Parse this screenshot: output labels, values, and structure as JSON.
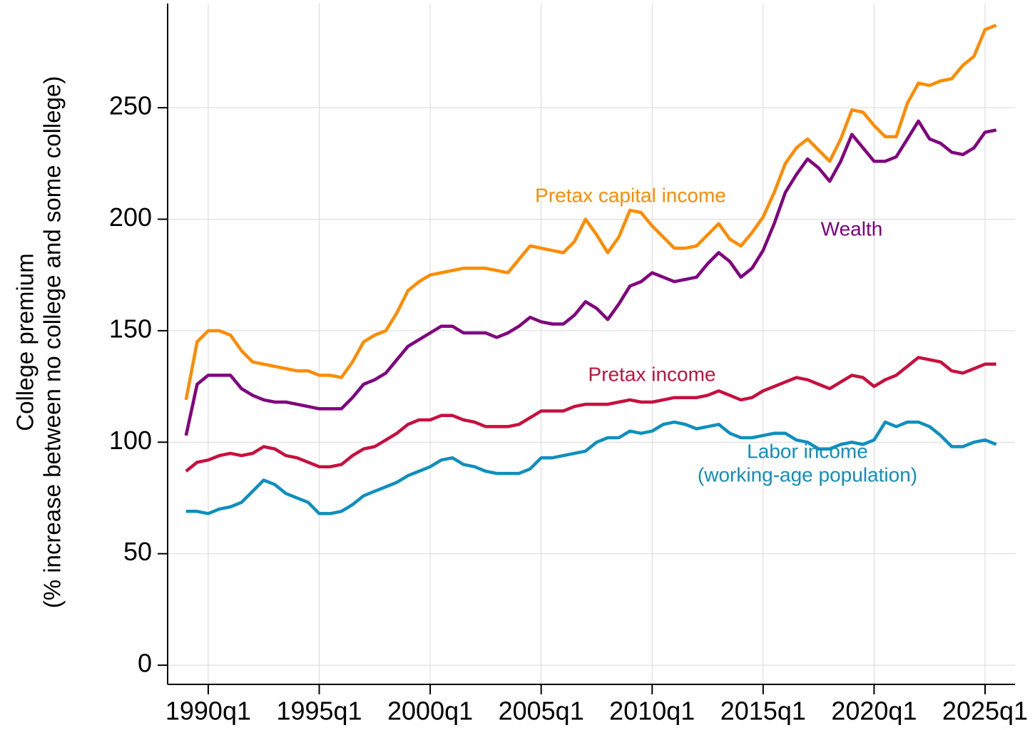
{
  "chart_data": {
    "type": "line",
    "ylabel": [
      "College premium",
      "(% increase between no college and some college)"
    ],
    "x": [
      1989.0,
      1989.5,
      1990.0,
      1990.5,
      1991.0,
      1991.5,
      1992.0,
      1992.5,
      1993.0,
      1993.5,
      1994.0,
      1994.5,
      1995.0,
      1995.5,
      1996.0,
      1996.5,
      1997.0,
      1997.5,
      1998.0,
      1998.5,
      1999.0,
      1999.5,
      2000.0,
      2000.5,
      2001.0,
      2001.5,
      2002.0,
      2002.5,
      2003.0,
      2003.5,
      2004.0,
      2004.5,
      2005.0,
      2005.5,
      2006.0,
      2006.5,
      2007.0,
      2007.5,
      2008.0,
      2008.5,
      2009.0,
      2009.5,
      2010.0,
      2010.5,
      2011.0,
      2011.5,
      2012.0,
      2012.5,
      2013.0,
      2013.5,
      2014.0,
      2014.5,
      2015.0,
      2015.5,
      2016.0,
      2016.5,
      2017.0,
      2017.5,
      2018.0,
      2018.5,
      2019.0,
      2019.5,
      2020.0,
      2020.5,
      2021.0,
      2021.5,
      2022.0,
      2022.5,
      2023.0,
      2023.5,
      2024.0,
      2024.5,
      2025.0,
      2025.5
    ],
    "series": [
      {
        "label_lines": [
          "Pretax capital income"
        ],
        "color": "#ff8c00",
        "values": [
          119,
          145,
          150,
          150,
          148,
          141,
          136,
          135,
          134,
          133,
          132,
          132,
          130,
          130,
          129,
          136,
          145,
          148,
          150,
          158,
          168,
          172,
          175,
          176,
          177,
          178,
          178,
          178,
          177,
          176,
          182,
          188,
          187,
          186,
          185,
          190,
          200,
          193,
          185,
          192,
          204,
          203,
          197,
          192,
          187,
          187,
          188,
          193,
          198,
          191,
          188,
          194,
          201,
          212,
          225,
          232,
          236,
          231,
          226,
          236,
          249,
          248,
          242,
          237,
          237,
          252,
          261,
          260,
          262,
          263,
          269,
          273,
          285,
          287
        ]
      },
      {
        "label_lines": [
          "Wealth"
        ],
        "color": "#800080",
        "values": [
          103,
          126,
          130,
          130,
          130,
          124,
          121,
          119,
          118,
          118,
          117,
          116,
          115,
          115,
          115,
          120,
          126,
          128,
          131,
          137,
          143,
          146,
          149,
          152,
          152,
          149,
          149,
          149,
          147,
          149,
          152,
          156,
          154,
          153,
          153,
          157,
          163,
          160,
          155,
          162,
          170,
          172,
          176,
          174,
          172,
          173,
          174,
          180,
          185,
          181,
          174,
          178,
          186,
          198,
          212,
          220,
          227,
          223,
          217,
          226,
          238,
          232,
          226,
          226,
          228,
          236,
          244,
          236,
          234,
          230,
          229,
          232,
          239,
          240
        ]
      },
      {
        "label_lines": [
          "Pretax income"
        ],
        "color": "#c8103e",
        "values": [
          87,
          91,
          92,
          94,
          95,
          94,
          95,
          98,
          97,
          94,
          93,
          91,
          89,
          89,
          90,
          94,
          97,
          98,
          101,
          104,
          108,
          110,
          110,
          112,
          112,
          110,
          109,
          107,
          107,
          107,
          108,
          111,
          114,
          114,
          114,
          116,
          117,
          117,
          117,
          118,
          119,
          118,
          118,
          119,
          120,
          120,
          120,
          121,
          123,
          121,
          119,
          120,
          123,
          125,
          127,
          129,
          128,
          126,
          124,
          127,
          130,
          129,
          125,
          128,
          130,
          134,
          138,
          137,
          136,
          132,
          131,
          133,
          135,
          135
        ]
      },
      {
        "label_lines": [
          "Labor income",
          "(working-age population)"
        ],
        "color": "#0e8fbd",
        "values": [
          69,
          69,
          68,
          70,
          71,
          73,
          78,
          83,
          81,
          77,
          75,
          73,
          68,
          68,
          69,
          72,
          76,
          78,
          80,
          82,
          85,
          87,
          89,
          92,
          93,
          90,
          89,
          87,
          86,
          86,
          86,
          88,
          93,
          93,
          94,
          95,
          96,
          100,
          102,
          102,
          105,
          104,
          105,
          108,
          109,
          108,
          106,
          107,
          108,
          104,
          102,
          102,
          103,
          104,
          104,
          101,
          100,
          97,
          97,
          99,
          100,
          99,
          101,
          109,
          107,
          109,
          109,
          107,
          103,
          98,
          98,
          100,
          101,
          99
        ]
      }
    ],
    "xlim": [
      1988.17,
      2026.35
    ],
    "xticks": [
      {
        "value": 1990,
        "label": "1990q1"
      },
      {
        "value": 1995,
        "label": "1995q1"
      },
      {
        "value": 2000,
        "label": "2000q1"
      },
      {
        "value": 2005,
        "label": "2005q1"
      },
      {
        "value": 2010,
        "label": "2010q1"
      },
      {
        "value": 2015,
        "label": "2015q1"
      },
      {
        "value": 2020,
        "label": "2020q1"
      },
      {
        "value": 2025,
        "label": "2025q1"
      }
    ],
    "ylim": [
      -8.6,
      296.7
    ],
    "yticks": [
      0,
      50,
      100,
      150,
      200,
      250
    ],
    "grid": true
  }
}
